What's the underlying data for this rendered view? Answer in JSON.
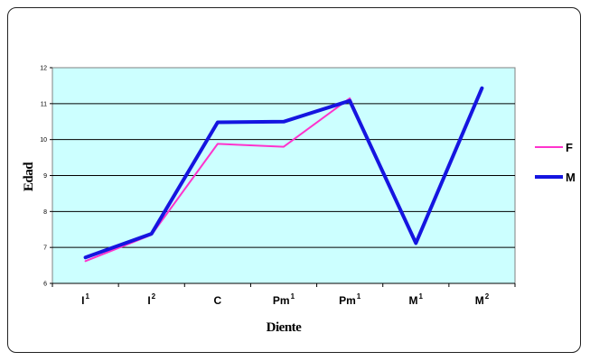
{
  "chart_data": {
    "type": "line",
    "title": "",
    "xlabel": "Diente",
    "ylabel": "Edad",
    "ylim": [
      6,
      12
    ],
    "y_ticks": [
      "6",
      "7",
      "8",
      "9",
      "10",
      "11",
      "12"
    ],
    "categories": [
      {
        "base": "I",
        "sup": "1"
      },
      {
        "base": "I",
        "sup": "2"
      },
      {
        "base": "C",
        "sup": ""
      },
      {
        "base": "Pm",
        "sup": "1"
      },
      {
        "base": "Pm",
        "sup": "1"
      },
      {
        "base": "M",
        "sup": "1"
      },
      {
        "base": "M",
        "sup": "2"
      }
    ],
    "series": [
      {
        "name": "F",
        "color": "#ff33cc",
        "values": [
          6.62,
          7.35,
          9.88,
          9.8,
          11.15,
          7.1,
          11.4
        ]
      },
      {
        "name": "M",
        "color": "#1515e0",
        "values": [
          6.72,
          7.38,
          10.48,
          10.5,
          11.08,
          7.12,
          11.43
        ]
      }
    ],
    "plot_background": "#ccffff",
    "grid": true,
    "legend_position": "right"
  }
}
